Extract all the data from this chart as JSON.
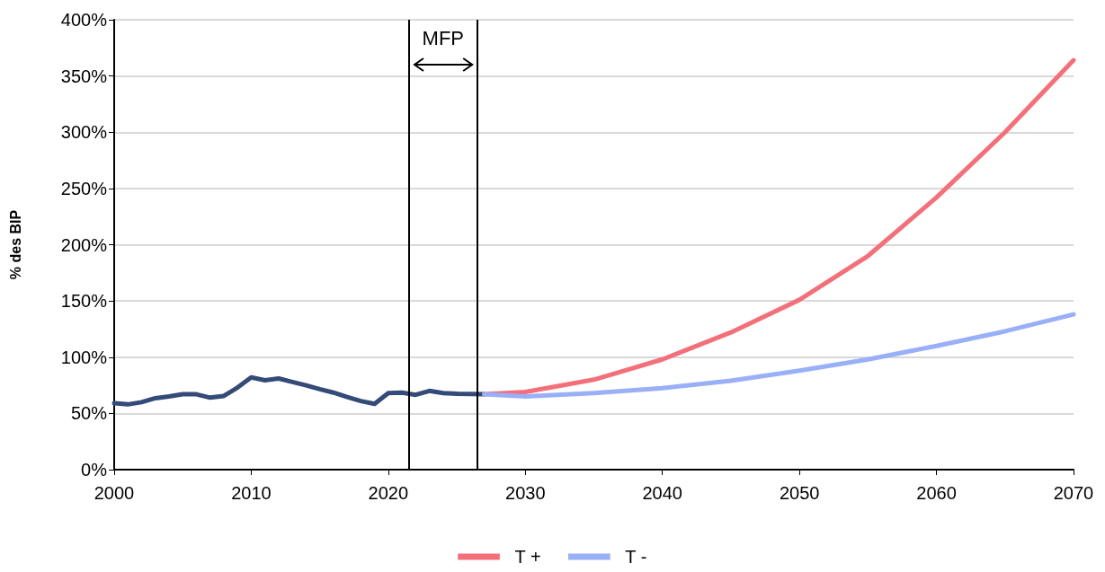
{
  "chart_data": {
    "type": "line",
    "ylabel": "% des BIP",
    "xlim": [
      2000,
      2070
    ],
    "xticks": [
      2000,
      2010,
      2020,
      2030,
      2040,
      2050,
      2060,
      2070
    ],
    "ylim": [
      0,
      400
    ],
    "yticks": [
      {
        "value": 0,
        "label": "0%"
      },
      {
        "value": 50,
        "label": "50%"
      },
      {
        "value": 100,
        "label": "100%"
      },
      {
        "value": 150,
        "label": "150%"
      },
      {
        "value": 200,
        "label": "200%"
      },
      {
        "value": 250,
        "label": "250%"
      },
      {
        "value": 300,
        "label": "300%"
      },
      {
        "value": 350,
        "label": "350%"
      },
      {
        "value": 400,
        "label": "400%"
      }
    ],
    "grid": "y",
    "legend": "bottom",
    "marker": "none",
    "line_style": "solid",
    "series": [
      {
        "color": "#344a77",
        "x": [
          2000,
          2001,
          2002,
          2003,
          2004,
          2005,
          2006,
          2007,
          2008,
          2009,
          2010,
          2011,
          2012,
          2013,
          2014,
          2015,
          2016,
          2017,
          2018,
          2019,
          2020,
          2021,
          2022,
          2023,
          2024,
          2025,
          2026,
          2027
        ],
        "values": [
          59,
          58,
          60,
          63.5,
          65,
          67,
          67,
          64,
          65.5,
          73,
          82,
          79.5,
          81,
          78,
          75,
          71.5,
          68.5,
          64.5,
          61,
          58.5,
          68,
          68.5,
          66.5,
          70,
          68,
          67.5,
          67.3,
          67
        ]
      },
      {
        "name": "T +",
        "color": "#f3707a",
        "x": [
          2027,
          2030,
          2035,
          2040,
          2045,
          2050,
          2055,
          2060,
          2065,
          2070
        ],
        "values": [
          67,
          69,
          80,
          98,
          122,
          151,
          190,
          242,
          300,
          364
        ]
      },
      {
        "name": "T -",
        "color": "#99aff8",
        "x": [
          2027,
          2030,
          2035,
          2040,
          2045,
          2050,
          2055,
          2060,
          2065,
          2070
        ],
        "values": [
          67,
          65,
          68,
          72.5,
          79,
          88,
          98,
          110,
          123,
          138
        ]
      }
    ],
    "ref_lines": [
      {
        "axis": "x",
        "value": 2021.5,
        "color": "#000000"
      },
      {
        "axis": "x",
        "value": 2026.5,
        "color": "#000000"
      }
    ],
    "annotations": [
      "MFP"
    ]
  }
}
